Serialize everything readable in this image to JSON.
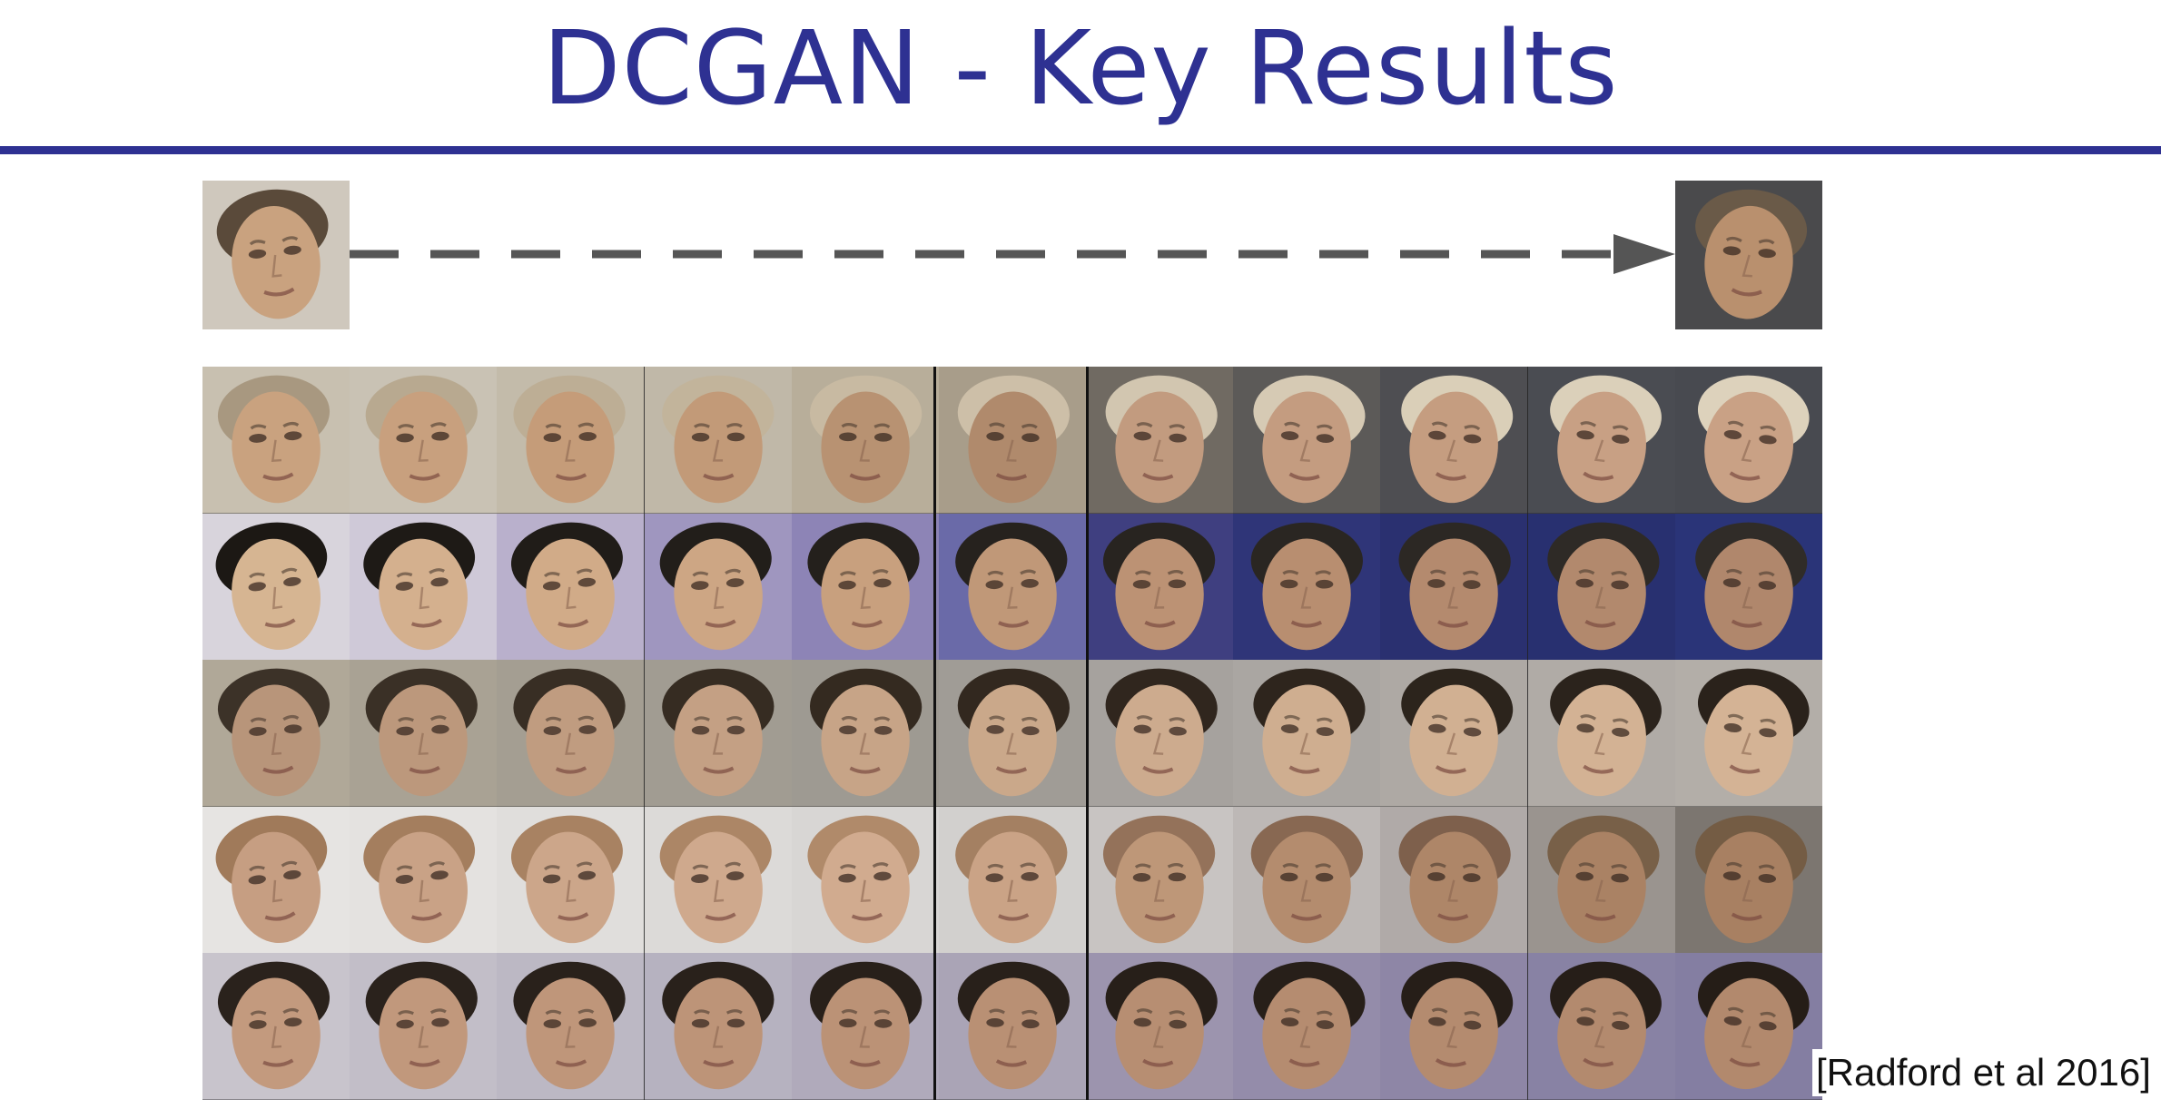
{
  "slide": {
    "title": "DCGAN - Key Results",
    "citation": "[Radford et al 2016]"
  },
  "colors": {
    "title": "#2e3192",
    "rule": "#2e3192",
    "arrow": "#555555"
  },
  "figure": {
    "rows": [
      {
        "bg": [
          "#c8c0b0",
          "#c9c2b4",
          "#c3bbaa",
          "#c0b8a8",
          "#b8ae9a",
          "#a89d8a",
          "#706a62",
          "#5c5a58",
          "#4e4e52",
          "#4a4c52",
          "#484a50"
        ],
        "skin": [
          "#c9a27f",
          "#c8a07e",
          "#c59c79",
          "#c29a78",
          "#b89272",
          "#b08a6c",
          "#c29b7f",
          "#c49c80",
          "#c59d80",
          "#c8a084",
          "#c9a185"
        ],
        "hair": [
          "#a89880",
          "#b8a990",
          "#bdae95",
          "#c2b49b",
          "#c8baa2",
          "#cdbfa8",
          "#d2c6b0",
          "#d6cab4",
          "#dacfb8",
          "#dbd0ba",
          "#ddd2bc"
        ]
      },
      {
        "bg": [
          "#d8d4dc",
          "#cfc9d8",
          "#b9b0cc",
          "#9f96bf",
          "#8d84b6",
          "#6a6aa8",
          "#3f3f80",
          "#2f3578",
          "#2a3070",
          "#283070",
          "#2a3478"
        ],
        "skin": [
          "#d6b592",
          "#d4b08e",
          "#d1ab88",
          "#cda684",
          "#c8a07e",
          "#c09878",
          "#bc9274",
          "#b88e70",
          "#b48a6e",
          "#b2896d",
          "#b0876c"
        ],
        "hair": [
          "#1c1814",
          "#1e1a16",
          "#201c18",
          "#221e1a",
          "#24201c",
          "#26221e",
          "#282420",
          "#2a2622",
          "#2c2824",
          "#2e2a26",
          "#302c28"
        ]
      },
      {
        "bg": [
          "#b0a898",
          "#a9a294",
          "#a49e92",
          "#a19c92",
          "#9e9a92",
          "#a09c96",
          "#a6a29e",
          "#aaa6a2",
          "#aea9a4",
          "#b0aba6",
          "#b3aea8"
        ],
        "skin": [
          "#b8957a",
          "#bc987c",
          "#c09c80",
          "#c4a084",
          "#c7a487",
          "#caa88a",
          "#cdab8e",
          "#cfae90",
          "#d1b092",
          "#d3b294",
          "#d4b395"
        ],
        "hair": [
          "#3c3228",
          "#3a3026",
          "#382e24",
          "#362c22",
          "#342a20",
          "#32281f",
          "#30261e",
          "#2e251d",
          "#2c241c",
          "#2b231c",
          "#2a221b"
        ]
      },
      {
        "bg": [
          "#e6e4e2",
          "#e4e2e0",
          "#e0dedc",
          "#dcdad8",
          "#d8d6d4",
          "#d2d0ce",
          "#c8c4c2",
          "#bdb8b6",
          "#b0aaa8",
          "#9a948f",
          "#7c7670"
        ],
        "skin": [
          "#c69e82",
          "#c9a286",
          "#cca68a",
          "#cfa98d",
          "#d1ab8f",
          "#caa386",
          "#be9778",
          "#b48c6e",
          "#ae8668",
          "#aa8264",
          "#a88062"
        ],
        "hair": [
          "#a07a5a",
          "#a47e5e",
          "#a88262",
          "#ac8666",
          "#b08a6a",
          "#a48062",
          "#94725a",
          "#886852",
          "#7e604c",
          "#786048",
          "#745c44"
        ]
      },
      {
        "bg": [
          "#c8c4cc",
          "#c2bec8",
          "#bcb8c4",
          "#b6b2c0",
          "#b0aabb",
          "#aaa4b6",
          "#9c94ae",
          "#948caa",
          "#8e86a6",
          "#8882a4",
          "#847ea2"
        ],
        "skin": [
          "#c39a7e",
          "#c1987c",
          "#bf967a",
          "#bd9478",
          "#bb9276",
          "#b99074",
          "#b78e72",
          "#b58c70",
          "#b48b6f",
          "#b38a6e",
          "#b2896d"
        ],
        "hair": [
          "#2a221c",
          "#2a221c",
          "#29211b",
          "#29211b",
          "#28201a",
          "#28201a",
          "#271f19",
          "#271f19",
          "#261e18",
          "#261e18",
          "#251d17"
        ]
      }
    ],
    "endpoints": {
      "start": {
        "bg": "#cfc8bd",
        "skin": "#c9a27f",
        "hair": "#5a4a3a"
      },
      "end": {
        "bg": "#4a4a4c",
        "skin": "#b9906e",
        "hair": "#6a5a48"
      }
    }
  }
}
